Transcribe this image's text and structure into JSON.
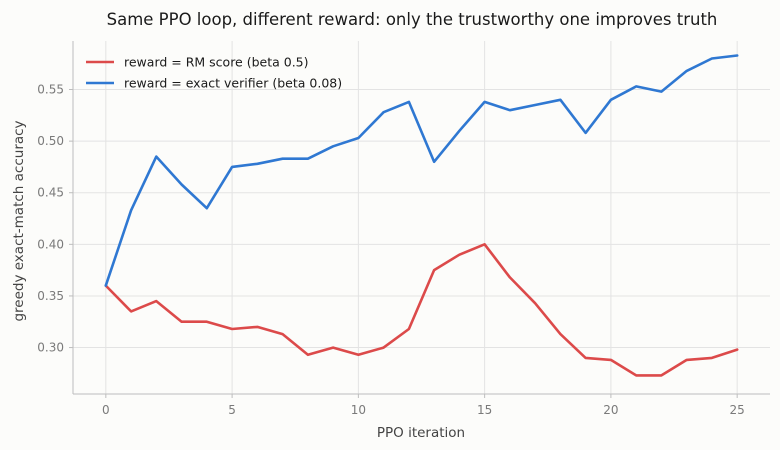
{
  "chart_data": {
    "type": "line",
    "title": "Same PPO loop, different reward: only the trustworthy one improves truth",
    "xlabel": "PPO iteration",
    "ylabel": "greedy exact-match accuracy",
    "xlim": [
      -1.3,
      26.3
    ],
    "ylim": [
      0.255,
      0.597
    ],
    "xticks": [
      0,
      5,
      10,
      15,
      20,
      25
    ],
    "yticks": [
      0.3,
      0.35,
      0.4,
      0.45,
      0.5,
      0.55
    ],
    "xtick_labels": [
      "0",
      "5",
      "10",
      "15",
      "20",
      "25"
    ],
    "ytick_labels": [
      "0.30",
      "0.35",
      "0.40",
      "0.45",
      "0.50",
      "0.55"
    ],
    "grid": true,
    "legend_position": "top-left",
    "x": [
      0,
      1,
      2,
      3,
      4,
      5,
      6,
      7,
      8,
      9,
      10,
      11,
      12,
      13,
      14,
      15,
      16,
      17,
      18,
      19,
      20,
      21,
      22,
      23,
      24,
      25
    ],
    "series": [
      {
        "name": "reward = RM score (beta 0.5)",
        "color": "#dc4a4a",
        "values": [
          0.36,
          0.335,
          0.345,
          0.325,
          0.325,
          0.318,
          0.32,
          0.313,
          0.293,
          0.3,
          0.293,
          0.3,
          0.318,
          0.375,
          0.39,
          0.4,
          0.368,
          0.343,
          0.313,
          0.29,
          0.288,
          0.273,
          0.273,
          0.288,
          0.29,
          0.298
        ]
      },
      {
        "name": "reward = exact verifier (beta 0.08)",
        "color": "#2f78d2",
        "values": [
          0.36,
          0.433,
          0.485,
          0.458,
          0.435,
          0.475,
          0.478,
          0.483,
          0.483,
          0.495,
          0.503,
          0.528,
          0.538,
          0.48,
          0.51,
          0.538,
          0.53,
          0.535,
          0.54,
          0.508,
          0.54,
          0.553,
          0.548,
          0.568,
          0.58,
          0.583
        ]
      }
    ]
  }
}
